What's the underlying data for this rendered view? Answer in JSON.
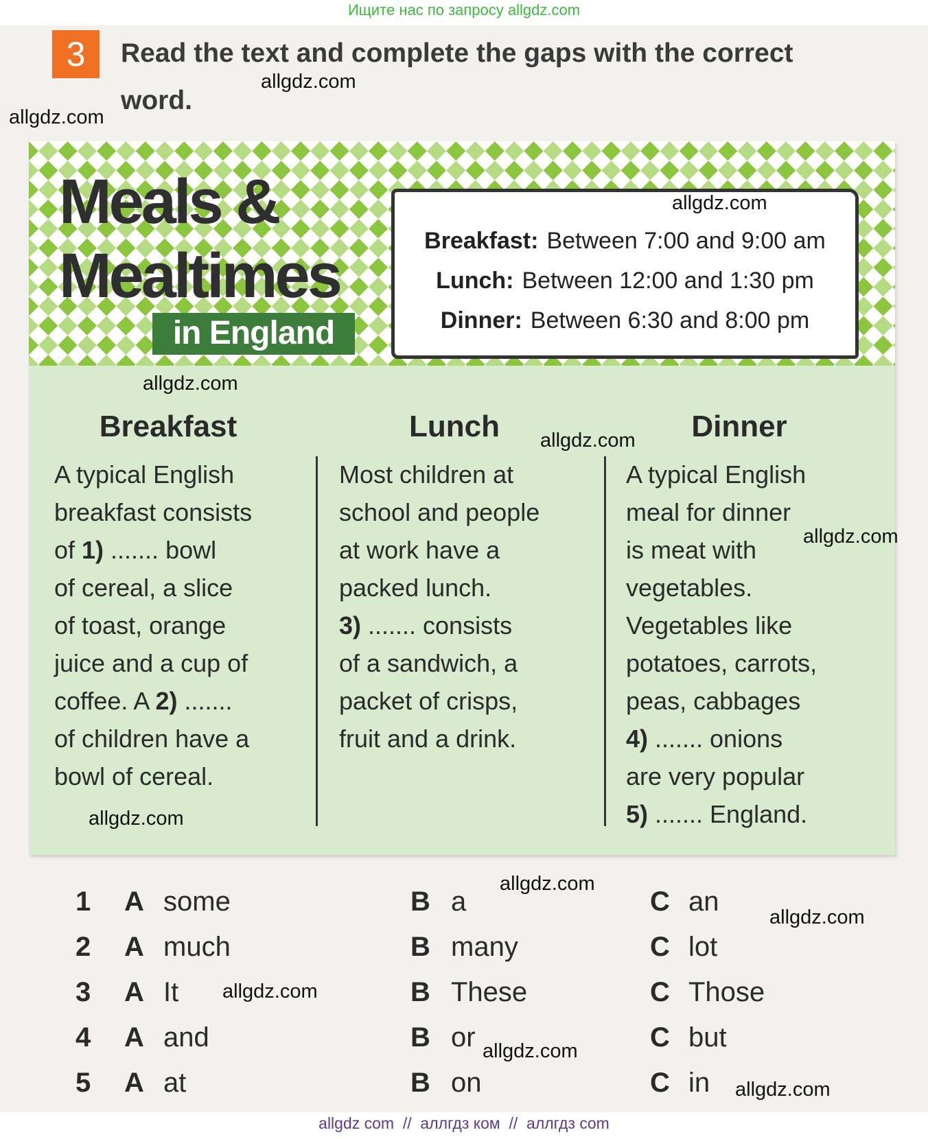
{
  "top_banner": "Ищите нас по запросу allgdz.com",
  "exercise": {
    "number": "3",
    "instruction_lines": [
      "Read the text and complete the gaps with the correct",
      "word."
    ]
  },
  "article": {
    "title_lines": [
      "Meals &",
      "Mealtimes"
    ],
    "subtitle": "in England",
    "schedule": [
      {
        "meal": "Breakfast:",
        "time": "Between 7:00 and 9:00 am"
      },
      {
        "meal": "Lunch:",
        "time": "Between 12:00 and 1:30 pm"
      },
      {
        "meal": "Dinner:",
        "time": "Between 6:30 and 8:00 pm"
      }
    ],
    "columns": [
      {
        "heading": "Breakfast",
        "lines": [
          "A typical English",
          "breakfast consists",
          [
            "of ",
            {
              "bold": "1)"
            },
            " ....... bowl"
          ],
          "of cereal, a slice",
          "of toast, orange",
          "juice and a cup of",
          [
            "coffee. A ",
            {
              "bold": "2)"
            },
            " ......."
          ],
          "of children have a",
          "bowl of cereal."
        ]
      },
      {
        "heading": "Lunch",
        "lines": [
          "Most children at",
          "school and people",
          "at work have a",
          "packed lunch.",
          [
            {
              "bold": "3)"
            },
            " ....... consists"
          ],
          "of a sandwich, a",
          "packet of crisps,",
          "fruit and a drink."
        ]
      },
      {
        "heading": "Dinner",
        "lines": [
          "A typical English",
          "meal for dinner",
          "is meat with",
          "vegetables.",
          "Vegetables like",
          "potatoes, carrots,",
          "peas, cabbages",
          [
            {
              "bold": "4)"
            },
            " ....... onions"
          ],
          "are very popular",
          [
            {
              "bold": "5)"
            },
            " ....... England."
          ]
        ]
      }
    ]
  },
  "options": [
    {
      "number": "1",
      "choices": [
        {
          "letter": "A",
          "word": "some"
        },
        {
          "letter": "B",
          "word": "a"
        },
        {
          "letter": "C",
          "word": "an"
        }
      ]
    },
    {
      "number": "2",
      "choices": [
        {
          "letter": "A",
          "word": "much"
        },
        {
          "letter": "B",
          "word": "many"
        },
        {
          "letter": "C",
          "word": "lot"
        }
      ]
    },
    {
      "number": "3",
      "choices": [
        {
          "letter": "A",
          "word": "It"
        },
        {
          "letter": "B",
          "word": "These"
        },
        {
          "letter": "C",
          "word": "Those"
        }
      ]
    },
    {
      "number": "4",
      "choices": [
        {
          "letter": "A",
          "word": "and"
        },
        {
          "letter": "B",
          "word": "or"
        },
        {
          "letter": "C",
          "word": "but"
        }
      ]
    },
    {
      "number": "5",
      "choices": [
        {
          "letter": "A",
          "word": "at"
        },
        {
          "letter": "B",
          "word": "on"
        },
        {
          "letter": "C",
          "word": "in"
        }
      ]
    }
  ],
  "watermarks": [
    "allgdz.com",
    "allgdz.com",
    "allgdz.com",
    "allgdz.com",
    "allgdz.com",
    "allgdz.com",
    "allgdz.com",
    "allgdz.com",
    "allgdz.com",
    "allgdz.com",
    "allgdz.com",
    "allgdz.com"
  ],
  "footer": "allgdz com  //  аллгдз ком  //  аллгдз com"
}
